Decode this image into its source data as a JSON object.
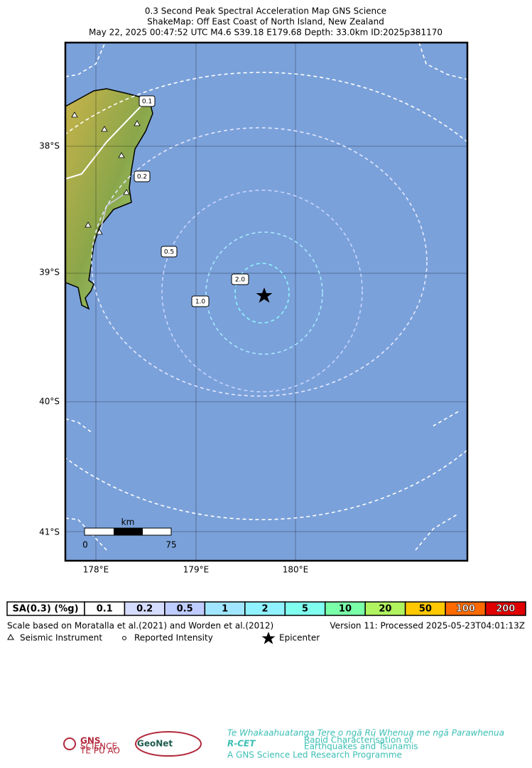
{
  "header": {
    "title": "0.3 Second Peak Spectral Acceleration Map GNS Science",
    "subtitle": "ShakeMap: Off East Coast of North Island, New Zealand",
    "event": "May 22, 2025 00:47:52 UTC M4.6 S39.18 E179.68 Depth: 33.0km ID:2025p381170"
  },
  "map": {
    "lat_labels": [
      "38°S",
      "39°S",
      "40°S",
      "41°S"
    ],
    "lon_labels": [
      "178°E",
      "179°E",
      "180°E"
    ],
    "contour_labels": [
      "0.1",
      "0.2",
      "0.5",
      "1.0",
      "2.0"
    ],
    "scale_bar": {
      "unit": "km",
      "start": "0",
      "end": "75"
    }
  },
  "legend": {
    "header": "SA(0.3) (%g)",
    "cells": [
      {
        "label": "0.1",
        "color": "#ffffff"
      },
      {
        "label": "0.2",
        "color": "#d6dcff"
      },
      {
        "label": "0.5",
        "color": "#bfccff"
      },
      {
        "label": "1",
        "color": "#a0e6ff"
      },
      {
        "label": "2",
        "color": "#90f2ff"
      },
      {
        "label": "5",
        "color": "#80ffef"
      },
      {
        "label": "10",
        "color": "#7affa8"
      },
      {
        "label": "20",
        "color": "#b0f25f"
      },
      {
        "label": "50",
        "color": "#ffc800"
      },
      {
        "label": "100",
        "color": "#ff6a00"
      },
      {
        "label": "200",
        "color": "#e00000"
      }
    ]
  },
  "footer": {
    "scale_note": "Scale based on Moratalla et al.(2021) and Worden et al.(2012)",
    "version": "Version 11: Processed 2025-05-23T04:01:13Z",
    "symbols": [
      "Seismic Instrument",
      "Reported Intensity",
      "Epicenter"
    ]
  },
  "logos": {
    "gns": "GNS",
    "gns_sub": "SCIENCE",
    "gns_maori": "TE PŪ AO",
    "geonet": "GeoNet",
    "rcet": "R-CET",
    "rcet_maori": "Te Whakaahuatanga Tere o ngā Rū Whenua me ngā Parawhenua",
    "rcet_desc1": "Rapid Characterisation of",
    "rcet_desc2": "Earthquakes and Tsunamis",
    "rcet_prog": "A GNS Science Led Research Programme"
  }
}
